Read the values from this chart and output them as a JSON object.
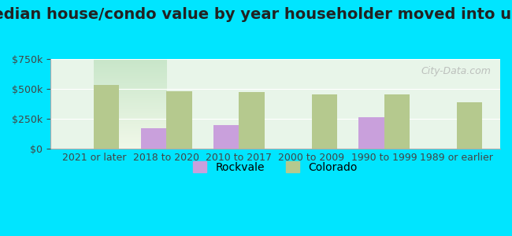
{
  "title": "Median house/condo value by year householder moved into unit",
  "categories": [
    "2021 or later",
    "2018 to 2020",
    "2010 to 2017",
    "2000 to 2009",
    "1990 to 1999",
    "1989 or earlier"
  ],
  "rockvale_values": [
    null,
    175000,
    195000,
    null,
    262000,
    null
  ],
  "colorado_values": [
    535000,
    480000,
    473000,
    455000,
    455000,
    390000
  ],
  "rockvale_color": "#c9a0dc",
  "colorado_color": "#b5c98e",
  "background_color": "#00e5ff",
  "plot_bg_color_top": "#e8f5e9",
  "plot_bg_color_bottom": "#d0ead8",
  "ylim": [
    0,
    750000
  ],
  "yticks": [
    0,
    250000,
    500000,
    750000
  ],
  "ytick_labels": [
    "$0",
    "$250k",
    "$500k",
    "$750k"
  ],
  "bar_width": 0.35,
  "legend_rockvale": "Rockvale",
  "legend_colorado": "Colorado",
  "watermark": "City-Data.com",
  "title_fontsize": 14,
  "tick_fontsize": 9,
  "legend_fontsize": 10
}
